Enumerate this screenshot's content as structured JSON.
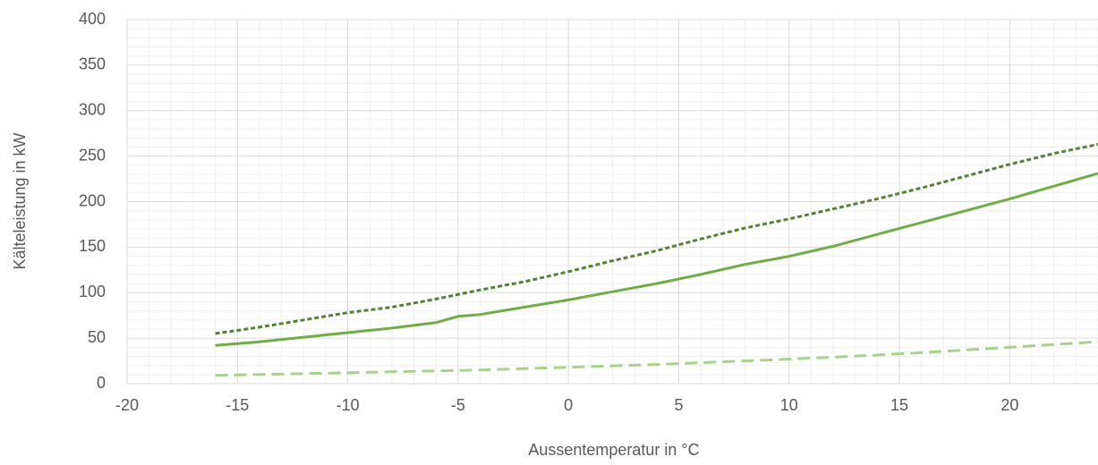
{
  "chart_data": {
    "type": "line",
    "xlabel": "Aussentemperatur in °C",
    "ylabel": "Kälteleistung in kW",
    "xlim": [
      -20,
      24
    ],
    "ylim": [
      0,
      400
    ],
    "x_ticks": [
      -20,
      -15,
      -10,
      -5,
      0,
      5,
      10,
      15,
      20
    ],
    "y_ticks": [
      0,
      50,
      100,
      150,
      200,
      250,
      300,
      350,
      400
    ],
    "x_tick_labels": [
      "-20",
      "-15",
      "-10",
      "-5",
      "0",
      "5",
      "10",
      "15",
      "20"
    ],
    "y_tick_labels": [
      "0",
      "50",
      "100",
      "150",
      "200",
      "250",
      "300",
      "350",
      "400"
    ],
    "grid": true,
    "minor_grid": true,
    "legend": "none",
    "series": [
      {
        "style": "dotted",
        "color": "#548235",
        "points": [
          [
            -16,
            55
          ],
          [
            -14,
            62
          ],
          [
            -12,
            70
          ],
          [
            -10,
            78
          ],
          [
            -8,
            84
          ],
          [
            -6,
            93
          ],
          [
            -4,
            103
          ],
          [
            -2,
            112
          ],
          [
            0,
            123
          ],
          [
            2,
            135
          ],
          [
            4,
            146
          ],
          [
            6,
            159
          ],
          [
            8,
            171
          ],
          [
            10,
            181
          ],
          [
            12,
            192
          ],
          [
            14,
            203
          ],
          [
            16,
            215
          ],
          [
            18,
            228
          ],
          [
            20,
            241
          ],
          [
            22,
            253
          ],
          [
            24,
            263
          ]
        ]
      },
      {
        "style": "solid",
        "color": "#70AD47",
        "points": [
          [
            -16,
            42
          ],
          [
            -14,
            46
          ],
          [
            -12,
            51
          ],
          [
            -10,
            56
          ],
          [
            -8,
            61
          ],
          [
            -6,
            67
          ],
          [
            -5,
            74
          ],
          [
            -4,
            76
          ],
          [
            -2,
            84
          ],
          [
            0,
            92
          ],
          [
            2,
            101
          ],
          [
            4,
            110
          ],
          [
            6,
            120
          ],
          [
            8,
            131
          ],
          [
            10,
            140
          ],
          [
            12,
            151
          ],
          [
            14,
            164
          ],
          [
            16,
            177
          ],
          [
            18,
            190
          ],
          [
            20,
            203
          ],
          [
            22,
            217
          ],
          [
            24,
            231
          ]
        ]
      },
      {
        "style": "dashed",
        "color": "#A9D18E",
        "points": [
          [
            -16,
            9
          ],
          [
            -12,
            11
          ],
          [
            -8,
            13
          ],
          [
            -4,
            15
          ],
          [
            0,
            18
          ],
          [
            4,
            21
          ],
          [
            8,
            25
          ],
          [
            12,
            29
          ],
          [
            16,
            34
          ],
          [
            20,
            40
          ],
          [
            24,
            46
          ]
        ]
      }
    ]
  }
}
